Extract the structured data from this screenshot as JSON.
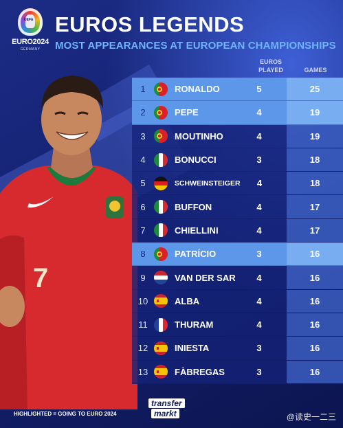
{
  "header": {
    "title": "EUROS LEGENDS",
    "subtitle": "MOST APPEARANCES AT EUROPEAN CHAMPIONSHIPS"
  },
  "logo": {
    "uefa": "UEFA",
    "euro": "EURO2024",
    "country": "GERMANY"
  },
  "columns": {
    "euros_line1": "EUROS",
    "euros_line2": "PLAYED",
    "games": "GAMES"
  },
  "rows": [
    {
      "rank": "1",
      "name": "RONALDO",
      "flag": "portugal-flag-icon",
      "euros": "5",
      "games": "25",
      "highlighted": true
    },
    {
      "rank": "2",
      "name": "PEPE",
      "flag": "portugal-flag-icon",
      "euros": "4",
      "games": "19",
      "highlighted": true
    },
    {
      "rank": "3",
      "name": "MOUTINHO",
      "flag": "portugal-flag-icon",
      "euros": "4",
      "games": "19",
      "highlighted": false
    },
    {
      "rank": "4",
      "name": "BONUCCI",
      "flag": "italy-flag-icon",
      "euros": "3",
      "games": "18",
      "highlighted": false
    },
    {
      "rank": "5",
      "name": "SCHWEINSTEIGER",
      "flag": "germany-flag-icon",
      "euros": "4",
      "games": "18",
      "highlighted": false
    },
    {
      "rank": "6",
      "name": "BUFFON",
      "flag": "italy-flag-icon",
      "euros": "4",
      "games": "17",
      "highlighted": false
    },
    {
      "rank": "7",
      "name": "CHIELLINI",
      "flag": "italy-flag-icon",
      "euros": "4",
      "games": "17",
      "highlighted": false
    },
    {
      "rank": "8",
      "name": "PATRÍCIO",
      "flag": "portugal-flag-icon",
      "euros": "3",
      "games": "16",
      "highlighted": true
    },
    {
      "rank": "9",
      "name": "VAN DER SAR",
      "flag": "netherlands-flag-icon",
      "euros": "4",
      "games": "16",
      "highlighted": false
    },
    {
      "rank": "10",
      "name": "ALBA",
      "flag": "spain-flag-icon",
      "euros": "4",
      "games": "16",
      "highlighted": false
    },
    {
      "rank": "11",
      "name": "THURAM",
      "flag": "france-flag-icon",
      "euros": "4",
      "games": "16",
      "highlighted": false
    },
    {
      "rank": "12",
      "name": "INIESTA",
      "flag": "spain-flag-icon",
      "euros": "3",
      "games": "16",
      "highlighted": false
    },
    {
      "rank": "13",
      "name": "FÀBREGAS",
      "flag": "spain-flag-icon",
      "euros": "3",
      "games": "16",
      "highlighted": false
    }
  ],
  "player": {
    "shirt_number": "7"
  },
  "footer": {
    "note": "HIGHLIGHTED = GOING TO EURO 2024",
    "brand_line1": "transfer",
    "brand_line2": "markt",
    "watermark": "@读史一二三"
  },
  "colors": {
    "background": "#14216f",
    "highlight_row": "#5c97ea",
    "subtitle": "#6fb4ff",
    "jersey": "#d62a2f"
  }
}
